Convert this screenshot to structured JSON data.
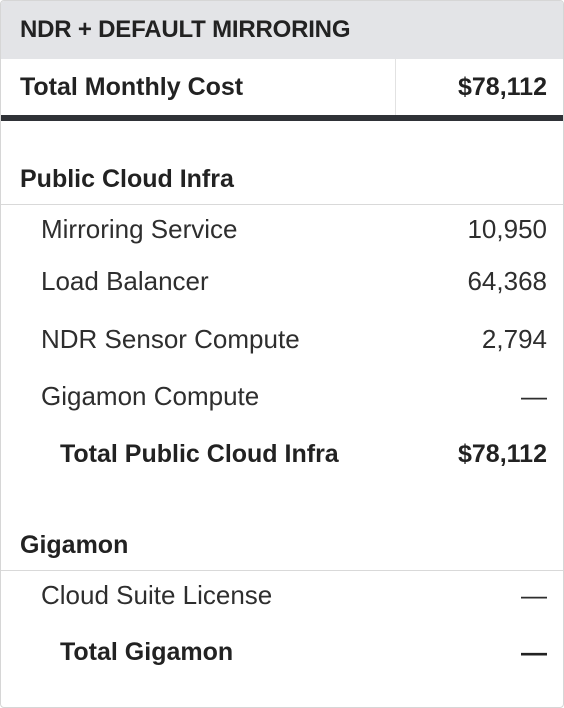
{
  "header": {
    "title": "NDR + DEFAULT MIRRORING"
  },
  "total": {
    "label": "Total Monthly Cost",
    "value": "$78,112"
  },
  "public_cloud": {
    "title": "Public Cloud Infra",
    "items": [
      {
        "label": "Mirroring Service",
        "value": "10,950"
      },
      {
        "label": "Load Balancer",
        "value": "64,368"
      },
      {
        "label": "NDR Sensor Compute",
        "value": "2,794"
      },
      {
        "label": "Gigamon Compute",
        "value": "—"
      }
    ],
    "subtotal": {
      "label": "Total Public Cloud Infra",
      "value": "$78,112"
    }
  },
  "gigamon": {
    "title": "Gigamon",
    "items": [
      {
        "label": "Cloud Suite License",
        "value": "—"
      }
    ],
    "subtotal": {
      "label": "Total Gigamon",
      "value": "—"
    }
  }
}
